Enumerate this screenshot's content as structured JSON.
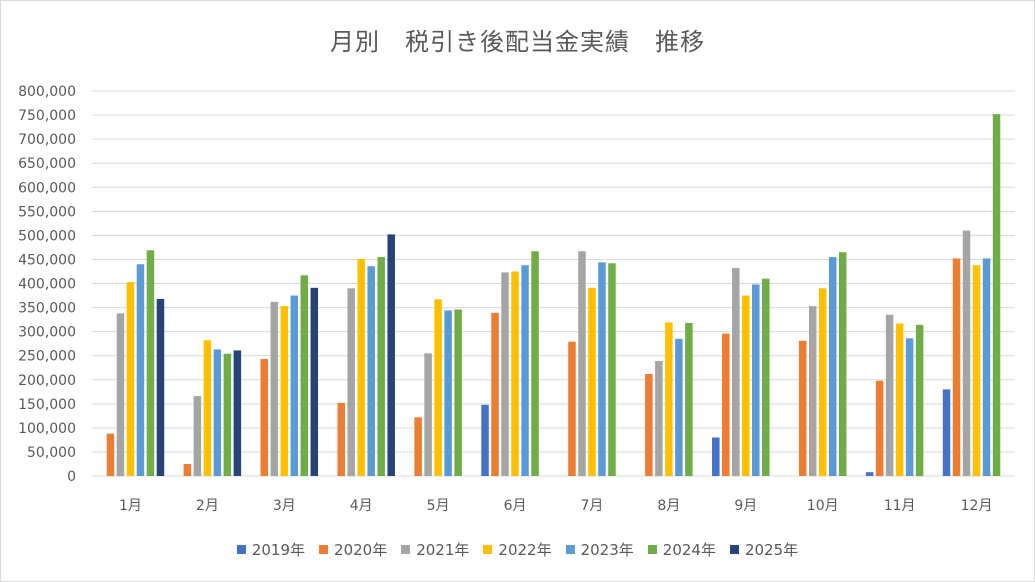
{
  "chart_data": {
    "type": "bar",
    "title": "月別　税引き後配当金実績　推移",
    "categories": [
      "1月",
      "2月",
      "3月",
      "4月",
      "5月",
      "6月",
      "7月",
      "8月",
      "9月",
      "10月",
      "11月",
      "12月"
    ],
    "ylim": [
      0,
      800000
    ],
    "yticks": [
      "0",
      "50,000",
      "100,000",
      "150,000",
      "200,000",
      "250,000",
      "300,000",
      "350,000",
      "400,000",
      "450,000",
      "500,000",
      "550,000",
      "600,000",
      "650,000",
      "700,000",
      "750,000",
      "800,000"
    ],
    "grid": true,
    "legend_position": "bottom",
    "series": [
      {
        "name": "2019年",
        "color": "#4472c4",
        "values": [
          0,
          0,
          0,
          0,
          0,
          148000,
          0,
          0,
          80000,
          0,
          8000,
          180000
        ]
      },
      {
        "name": "2020年",
        "color": "#ed7d31",
        "values": [
          88000,
          25000,
          243000,
          152000,
          122000,
          339000,
          279000,
          212000,
          296000,
          281000,
          198000,
          452000
        ]
      },
      {
        "name": "2021年",
        "color": "#a5a5a5",
        "values": [
          338000,
          166000,
          362000,
          390000,
          255000,
          423000,
          467000,
          239000,
          432000,
          353000,
          335000,
          510000
        ]
      },
      {
        "name": "2022年",
        "color": "#ffc000",
        "values": [
          403000,
          282000,
          353000,
          451000,
          367000,
          425000,
          391000,
          319000,
          375000,
          390000,
          317000,
          438000
        ]
      },
      {
        "name": "2023年",
        "color": "#5b9bd5",
        "values": [
          440000,
          263000,
          375000,
          436000,
          344000,
          438000,
          444000,
          285000,
          398000,
          455000,
          286000,
          452000
        ]
      },
      {
        "name": "2024年",
        "color": "#70ad47",
        "values": [
          469000,
          254000,
          417000,
          455000,
          346000,
          467000,
          442000,
          318000,
          410000,
          465000,
          314000,
          752000
        ]
      },
      {
        "name": "2025年",
        "color": "#264478",
        "values": [
          368000,
          261000,
          391000,
          502000,
          null,
          null,
          null,
          null,
          null,
          null,
          null,
          null
        ]
      }
    ]
  }
}
